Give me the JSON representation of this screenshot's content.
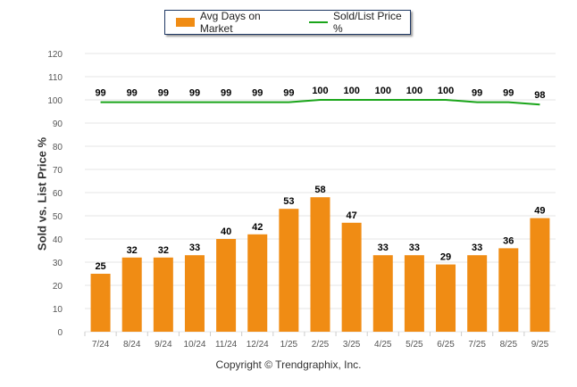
{
  "chart_data": {
    "type": "bar",
    "title": "",
    "xlabel": "",
    "ylabel": "Sold vs. List Price %",
    "ylim": [
      0,
      120
    ],
    "yticks": [
      0,
      10,
      20,
      30,
      40,
      50,
      60,
      70,
      80,
      90,
      100,
      110,
      120
    ],
    "grid": true,
    "legend_position": "top-center",
    "categories": [
      "7/24",
      "8/24",
      "9/24",
      "10/24",
      "11/24",
      "12/24",
      "1/25",
      "2/25",
      "3/25",
      "4/25",
      "5/25",
      "6/25",
      "7/25",
      "8/25",
      "9/25"
    ],
    "series": [
      {
        "name": "Avg Days on Market",
        "type": "bar",
        "color": "#f08c14",
        "values": [
          25,
          32,
          32,
          33,
          40,
          42,
          53,
          58,
          47,
          33,
          33,
          29,
          33,
          36,
          49
        ]
      },
      {
        "name": "Sold/List Price %",
        "type": "line",
        "color": "#1aa51a",
        "values": [
          99,
          99,
          99,
          99,
          99,
          99,
          99,
          100,
          100,
          100,
          100,
          100,
          99,
          99,
          98
        ]
      }
    ]
  },
  "footer": "Copyright © Trendgraphix, Inc."
}
